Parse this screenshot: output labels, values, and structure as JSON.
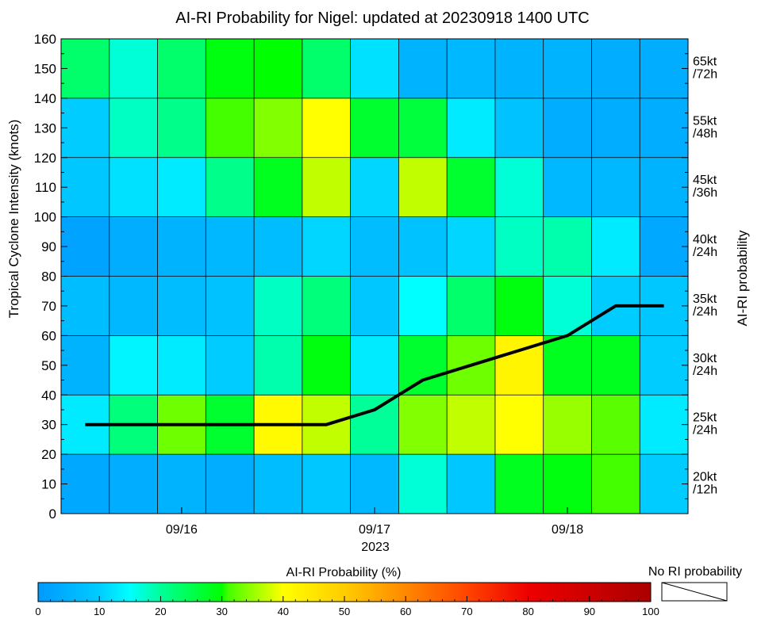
{
  "chart_data": {
    "type": "heatmap",
    "title": "AI-RI Probability for Nigel: updated at 20230918 1400 UTC",
    "ylabel": "Tropical Cyclone Intensity (knots)",
    "right_axis_label": "AI-RI probability",
    "xlabel_year": "2023",
    "x_ticks": [
      "09/16",
      "09/17",
      "09/18"
    ],
    "y_ticks": [
      "0",
      "10",
      "20",
      "30",
      "40",
      "50",
      "60",
      "70",
      "80",
      "90",
      "100",
      "110",
      "120",
      "130",
      "140",
      "150",
      "160"
    ],
    "ylim": [
      0,
      160
    ],
    "times": [
      "2023-09-15 12Z",
      "2023-09-15 18Z",
      "2023-09-16 00Z",
      "2023-09-16 06Z",
      "2023-09-16 12Z",
      "2023-09-16 18Z",
      "2023-09-17 00Z",
      "2023-09-17 06Z",
      "2023-09-17 12Z",
      "2023-09-17 18Z",
      "2023-09-18 00Z",
      "2023-09-18 06Z",
      "2023-09-18 12Z"
    ],
    "rows": [
      {
        "line1": "20kt",
        "line2": "/12h",
        "values": [
          3,
          4,
          5,
          4,
          7,
          9,
          6,
          17,
          9,
          28,
          29,
          31,
          10
        ]
      },
      {
        "line1": "25kt",
        "line2": "/24h",
        "values": [
          13,
          22,
          33,
          27,
          41,
          37,
          20,
          34,
          37,
          40,
          35,
          32,
          13
        ]
      },
      {
        "line1": "30kt",
        "line2": "/24h",
        "values": [
          5,
          14,
          13,
          10,
          19,
          29,
          13,
          27,
          33,
          42,
          28,
          28,
          10
        ]
      },
      {
        "line1": "35kt",
        "line2": "/24h",
        "values": [
          7,
          6,
          7,
          8,
          18,
          22,
          9,
          15,
          23,
          29,
          17,
          10,
          9
        ]
      },
      {
        "line1": "40kt",
        "line2": "/24h",
        "values": [
          2,
          4,
          5,
          6,
          7,
          11,
          7,
          8,
          11,
          18,
          19,
          13,
          3
        ]
      },
      {
        "line1": "45kt",
        "line2": "/36h",
        "values": [
          9,
          12,
          13,
          21,
          28,
          37,
          11,
          37,
          27,
          17,
          6,
          6,
          5
        ]
      },
      {
        "line1": "55kt",
        "line2": "/48h",
        "values": [
          10,
          18,
          21,
          31,
          34,
          40,
          27,
          26,
          13,
          8,
          4,
          4,
          4
        ]
      },
      {
        "line1": "65kt",
        "line2": "/72h",
        "values": [
          23,
          17,
          23,
          29,
          30,
          23,
          12,
          5,
          6,
          5,
          5,
          4,
          4
        ]
      }
    ],
    "intensity_line": {
      "times": [
        "2023-09-15 12Z",
        "2023-09-15 18Z",
        "2023-09-16 00Z",
        "2023-09-16 06Z",
        "2023-09-16 12Z",
        "2023-09-16 18Z",
        "2023-09-17 00Z",
        "2023-09-17 06Z",
        "2023-09-17 12Z",
        "2023-09-17 18Z",
        "2023-09-18 00Z",
        "2023-09-18 06Z",
        "2023-09-18 12Z"
      ],
      "values": [
        30,
        30,
        30,
        30,
        30,
        30,
        35,
        45,
        50,
        55,
        60,
        70,
        70
      ]
    },
    "colorbar": {
      "label": "AI-RI Probability (%)",
      "ticks": [
        "0",
        "10",
        "20",
        "30",
        "40",
        "50",
        "60",
        "70",
        "80",
        "90",
        "100"
      ],
      "range": [
        0,
        100
      ],
      "no_ri_label": "No RI probability"
    }
  }
}
